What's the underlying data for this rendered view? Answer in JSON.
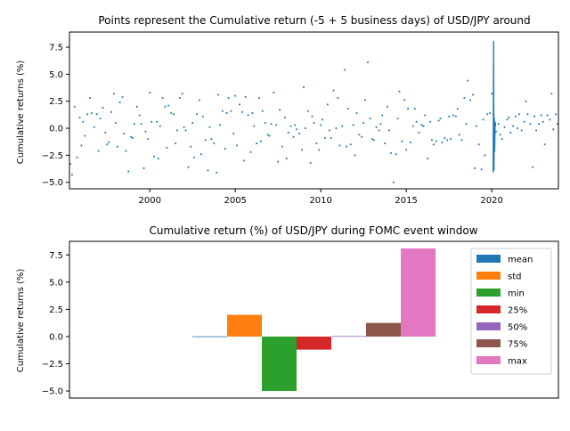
{
  "chart_data": [
    {
      "type": "scatter",
      "title": "Points represent the Cumulative return (-5 + 5 business days) of USD/JPY around",
      "xlabel": "",
      "ylabel": "Cumulative returns (%)",
      "xlim": [
        1995.3,
        2023.9
      ],
      "ylim": [
        -5.6,
        8.9
      ],
      "xticks": [
        2000,
        2005,
        2010,
        2015,
        2020
      ],
      "yticks": [
        -5.0,
        -2.5,
        0.0,
        2.5,
        5.0,
        7.5
      ],
      "color": "#1f77b4",
      "points": [
        [
          1995.35,
          -3.3
        ],
        [
          1995.45,
          -4.3
        ],
        [
          1995.6,
          2.0
        ],
        [
          1995.75,
          -2.7
        ],
        [
          1995.9,
          1.0
        ],
        [
          1996.0,
          -1.6
        ],
        [
          1996.1,
          0.6
        ],
        [
          1996.2,
          -0.7
        ],
        [
          1996.35,
          1.3
        ],
        [
          1996.5,
          2.8
        ],
        [
          1996.6,
          1.4
        ],
        [
          1996.75,
          0.1
        ],
        [
          1996.9,
          1.3
        ],
        [
          1997.0,
          -2.1
        ],
        [
          1997.1,
          0.9
        ],
        [
          1997.25,
          1.9
        ],
        [
          1997.4,
          -0.4
        ],
        [
          1997.5,
          -1.5
        ],
        [
          1997.6,
          -1.3
        ],
        [
          1997.75,
          1.5
        ],
        [
          1997.9,
          3.2
        ],
        [
          1998.0,
          0.5
        ],
        [
          1998.1,
          -1.7
        ],
        [
          1998.25,
          2.4
        ],
        [
          1998.4,
          2.9
        ],
        [
          1998.5,
          -0.5
        ],
        [
          1998.6,
          -2.1
        ],
        [
          1998.75,
          -4.0
        ],
        [
          1998.9,
          -0.8
        ],
        [
          1999.0,
          -0.9
        ],
        [
          1999.1,
          0.4
        ],
        [
          1999.25,
          2.0
        ],
        [
          1999.4,
          1.2
        ],
        [
          1999.5,
          0.4
        ],
        [
          1999.65,
          -3.7
        ],
        [
          1999.75,
          -0.3
        ],
        [
          1999.9,
          -1.0
        ],
        [
          2000.0,
          3.3
        ],
        [
          2000.1,
          0.6
        ],
        [
          2000.25,
          -2.6
        ],
        [
          2000.4,
          0.6
        ],
        [
          2000.5,
          -2.8
        ],
        [
          2000.6,
          0.2
        ],
        [
          2000.75,
          2.8
        ],
        [
          2000.9,
          2.0
        ],
        [
          2001.0,
          -1.8
        ],
        [
          2001.1,
          2.1
        ],
        [
          2001.25,
          1.4
        ],
        [
          2001.4,
          1.3
        ],
        [
          2001.5,
          -1.4
        ],
        [
          2001.6,
          -0.2
        ],
        [
          2001.75,
          2.8
        ],
        [
          2001.9,
          3.2
        ],
        [
          2002.0,
          0.1
        ],
        [
          2002.1,
          -0.2
        ],
        [
          2002.25,
          -3.6
        ],
        [
          2002.4,
          -1.7
        ],
        [
          2002.5,
          0.5
        ],
        [
          2002.6,
          -2.7
        ],
        [
          2002.75,
          1.3
        ],
        [
          2002.9,
          2.6
        ],
        [
          2003.0,
          -2.4
        ],
        [
          2003.1,
          1.1
        ],
        [
          2003.25,
          -1.1
        ],
        [
          2003.4,
          -3.9
        ],
        [
          2003.5,
          0.1
        ],
        [
          2003.6,
          -1.0
        ],
        [
          2003.75,
          -1.4
        ],
        [
          2003.9,
          -4.1
        ],
        [
          2004.0,
          3.1
        ],
        [
          2004.1,
          0.3
        ],
        [
          2004.25,
          1.6
        ],
        [
          2004.4,
          -1.9
        ],
        [
          2004.5,
          1.4
        ],
        [
          2004.6,
          2.8
        ],
        [
          2004.75,
          1.6
        ],
        [
          2004.9,
          -0.5
        ],
        [
          2005.0,
          3.0
        ],
        [
          2005.1,
          -1.6
        ],
        [
          2005.25,
          2.2
        ],
        [
          2005.4,
          1.5
        ],
        [
          2005.5,
          -3.0
        ],
        [
          2005.6,
          2.9
        ],
        [
          2005.75,
          1.2
        ],
        [
          2005.9,
          -2.2
        ],
        [
          2006.0,
          1.4
        ],
        [
          2006.1,
          0.2
        ],
        [
          2006.25,
          -1.4
        ],
        [
          2006.4,
          2.8
        ],
        [
          2006.5,
          -1.2
        ],
        [
          2006.6,
          1.6
        ],
        [
          2006.75,
          0.5
        ],
        [
          2006.9,
          -0.6
        ],
        [
          2007.0,
          -0.7
        ],
        [
          2007.1,
          0.4
        ],
        [
          2007.25,
          3.3
        ],
        [
          2007.4,
          0.3
        ],
        [
          2007.5,
          -3.1
        ],
        [
          2007.6,
          1.7
        ],
        [
          2007.75,
          -1.7
        ],
        [
          2007.9,
          1.0
        ],
        [
          2008.0,
          -2.8
        ],
        [
          2008.1,
          -0.4
        ],
        [
          2008.25,
          0.2
        ],
        [
          2008.4,
          -0.8
        ],
        [
          2008.5,
          0.3
        ],
        [
          2008.6,
          -0.1
        ],
        [
          2008.75,
          -0.5
        ],
        [
          2008.9,
          -2.0
        ],
        [
          2009.0,
          3.8
        ],
        [
          2009.1,
          0.0
        ],
        [
          2009.25,
          1.6
        ],
        [
          2009.4,
          -3.2
        ],
        [
          2009.5,
          1.1
        ],
        [
          2009.6,
          0.5
        ],
        [
          2009.75,
          -1.4
        ],
        [
          2009.9,
          -2.0
        ],
        [
          2010.0,
          0.3
        ],
        [
          2010.1,
          0.8
        ],
        [
          2010.25,
          -0.9
        ],
        [
          2010.4,
          2.2
        ],
        [
          2010.5,
          -0.2
        ],
        [
          2010.6,
          -0.9
        ],
        [
          2010.75,
          3.5
        ],
        [
          2010.9,
          0.0
        ],
        [
          2011.0,
          2.8
        ],
        [
          2011.1,
          -1.6
        ],
        [
          2011.25,
          0.2
        ],
        [
          2011.4,
          5.4
        ],
        [
          2011.5,
          -1.7
        ],
        [
          2011.6,
          1.8
        ],
        [
          2011.75,
          -1.5
        ],
        [
          2011.9,
          0.3
        ],
        [
          2012.0,
          -2.5
        ],
        [
          2012.1,
          1.4
        ],
        [
          2012.25,
          -0.6
        ],
        [
          2012.4,
          -0.8
        ],
        [
          2012.5,
          0.5
        ],
        [
          2012.6,
          2.6
        ],
        [
          2012.75,
          6.1
        ],
        [
          2012.9,
          0.9
        ],
        [
          2013.0,
          -1.0
        ],
        [
          2013.1,
          -1.1
        ],
        [
          2013.25,
          0.1
        ],
        [
          2013.4,
          -0.2
        ],
        [
          2013.5,
          0.4
        ],
        [
          2013.6,
          1.2
        ],
        [
          2013.75,
          -1.4
        ],
        [
          2013.9,
          2.0
        ],
        [
          2014.0,
          -0.2
        ],
        [
          2014.1,
          -2.3
        ],
        [
          2014.25,
          -5.0
        ],
        [
          2014.4,
          -2.4
        ],
        [
          2014.5,
          0.9
        ],
        [
          2014.6,
          3.4
        ],
        [
          2014.75,
          -1.2
        ],
        [
          2014.9,
          2.6
        ],
        [
          2015.0,
          -2.0
        ],
        [
          2015.1,
          1.8
        ],
        [
          2015.25,
          -1.3
        ],
        [
          2015.4,
          0.2
        ],
        [
          2015.5,
          1.8
        ],
        [
          2015.6,
          0.6
        ],
        [
          2015.75,
          -0.4
        ],
        [
          2015.9,
          0.3
        ],
        [
          2016.0,
          0.2
        ],
        [
          2016.1,
          1.2
        ],
        [
          2016.25,
          -2.8
        ],
        [
          2016.4,
          0.6
        ],
        [
          2016.5,
          -1.1
        ],
        [
          2016.6,
          -1.5
        ],
        [
          2016.75,
          -1.2
        ],
        [
          2016.9,
          0.7
        ],
        [
          2017.0,
          0.9
        ],
        [
          2017.1,
          -1.3
        ],
        [
          2017.25,
          -0.9
        ],
        [
          2017.4,
          -1.1
        ],
        [
          2017.5,
          1.1
        ],
        [
          2017.6,
          -1.0
        ],
        [
          2017.75,
          1.2
        ],
        [
          2017.9,
          1.1
        ],
        [
          2018.0,
          1.8
        ],
        [
          2018.1,
          -0.6
        ],
        [
          2018.25,
          -1.1
        ],
        [
          2018.4,
          2.8
        ],
        [
          2018.5,
          0.4
        ],
        [
          2018.6,
          4.4
        ],
        [
          2018.75,
          2.6
        ],
        [
          2018.9,
          3.1
        ],
        [
          2019.0,
          -3.7
        ],
        [
          2019.1,
          0.2
        ],
        [
          2019.25,
          -1.5
        ],
        [
          2019.4,
          -3.8
        ],
        [
          2019.5,
          0.8
        ],
        [
          2019.6,
          -2.5
        ],
        [
          2019.75,
          1.3
        ],
        [
          2019.9,
          1.4
        ],
        [
          2020.0,
          3.2
        ],
        [
          2020.1,
          1.3
        ],
        [
          2020.25,
          -0.3
        ],
        [
          2020.4,
          0.4
        ],
        [
          2020.5,
          -0.6
        ],
        [
          2020.6,
          -1.0
        ],
        [
          2020.75,
          0.1
        ],
        [
          2020.9,
          0.8
        ],
        [
          2021.0,
          1.0
        ],
        [
          2021.1,
          -0.4
        ],
        [
          2021.25,
          0.2
        ],
        [
          2021.4,
          1.1
        ],
        [
          2021.5,
          0.0
        ],
        [
          2021.6,
          1.3
        ],
        [
          2021.75,
          -0.2
        ],
        [
          2021.9,
          0.6
        ],
        [
          2022.0,
          2.5
        ],
        [
          2022.1,
          1.3
        ],
        [
          2022.25,
          0.4
        ],
        [
          2022.4,
          -3.6
        ],
        [
          2022.5,
          1.1
        ],
        [
          2022.6,
          -0.2
        ],
        [
          2022.75,
          0.4
        ],
        [
          2022.9,
          1.2
        ],
        [
          2023.0,
          0.6
        ],
        [
          2023.1,
          -1.5
        ],
        [
          2023.25,
          1.2
        ],
        [
          2023.4,
          0.8
        ],
        [
          2023.5,
          3.2
        ],
        [
          2023.6,
          -0.1
        ],
        [
          2023.75,
          1.3
        ],
        [
          2023.85,
          0.4
        ]
      ],
      "spike": {
        "x": [
          2020.08,
          2020.11,
          2020.13,
          2020.15,
          2020.17,
          2020.2,
          2020.23
        ],
        "y": [
          -4.1,
          8.1,
          -3.9,
          1.0,
          -2.2,
          0.6,
          0.2
        ]
      }
    },
    {
      "type": "bar",
      "title": "Cumulative return (%) of USD/JPY during FOMC event window",
      "xlabel": "",
      "ylabel": "Cumulative returns (%)",
      "ylim": [
        -5.65,
        8.75
      ],
      "yticks": [
        -5.0,
        -2.5,
        0.0,
        2.5,
        5.0,
        7.5
      ],
      "legend_position": "upper right",
      "series": [
        {
          "name": "mean",
          "value": 0.02,
          "color": "#1f77b4"
        },
        {
          "name": "std",
          "value": 2.0,
          "color": "#ff7f0e"
        },
        {
          "name": "min",
          "value": -5.0,
          "color": "#2ca02c"
        },
        {
          "name": "25%",
          "value": -1.2,
          "color": "#d62728"
        },
        {
          "name": "50%",
          "value": 0.05,
          "color": "#9467bd"
        },
        {
          "name": "75%",
          "value": 1.25,
          "color": "#8c564b"
        },
        {
          "name": "max",
          "value": 8.1,
          "color": "#e377c2"
        }
      ]
    }
  ]
}
